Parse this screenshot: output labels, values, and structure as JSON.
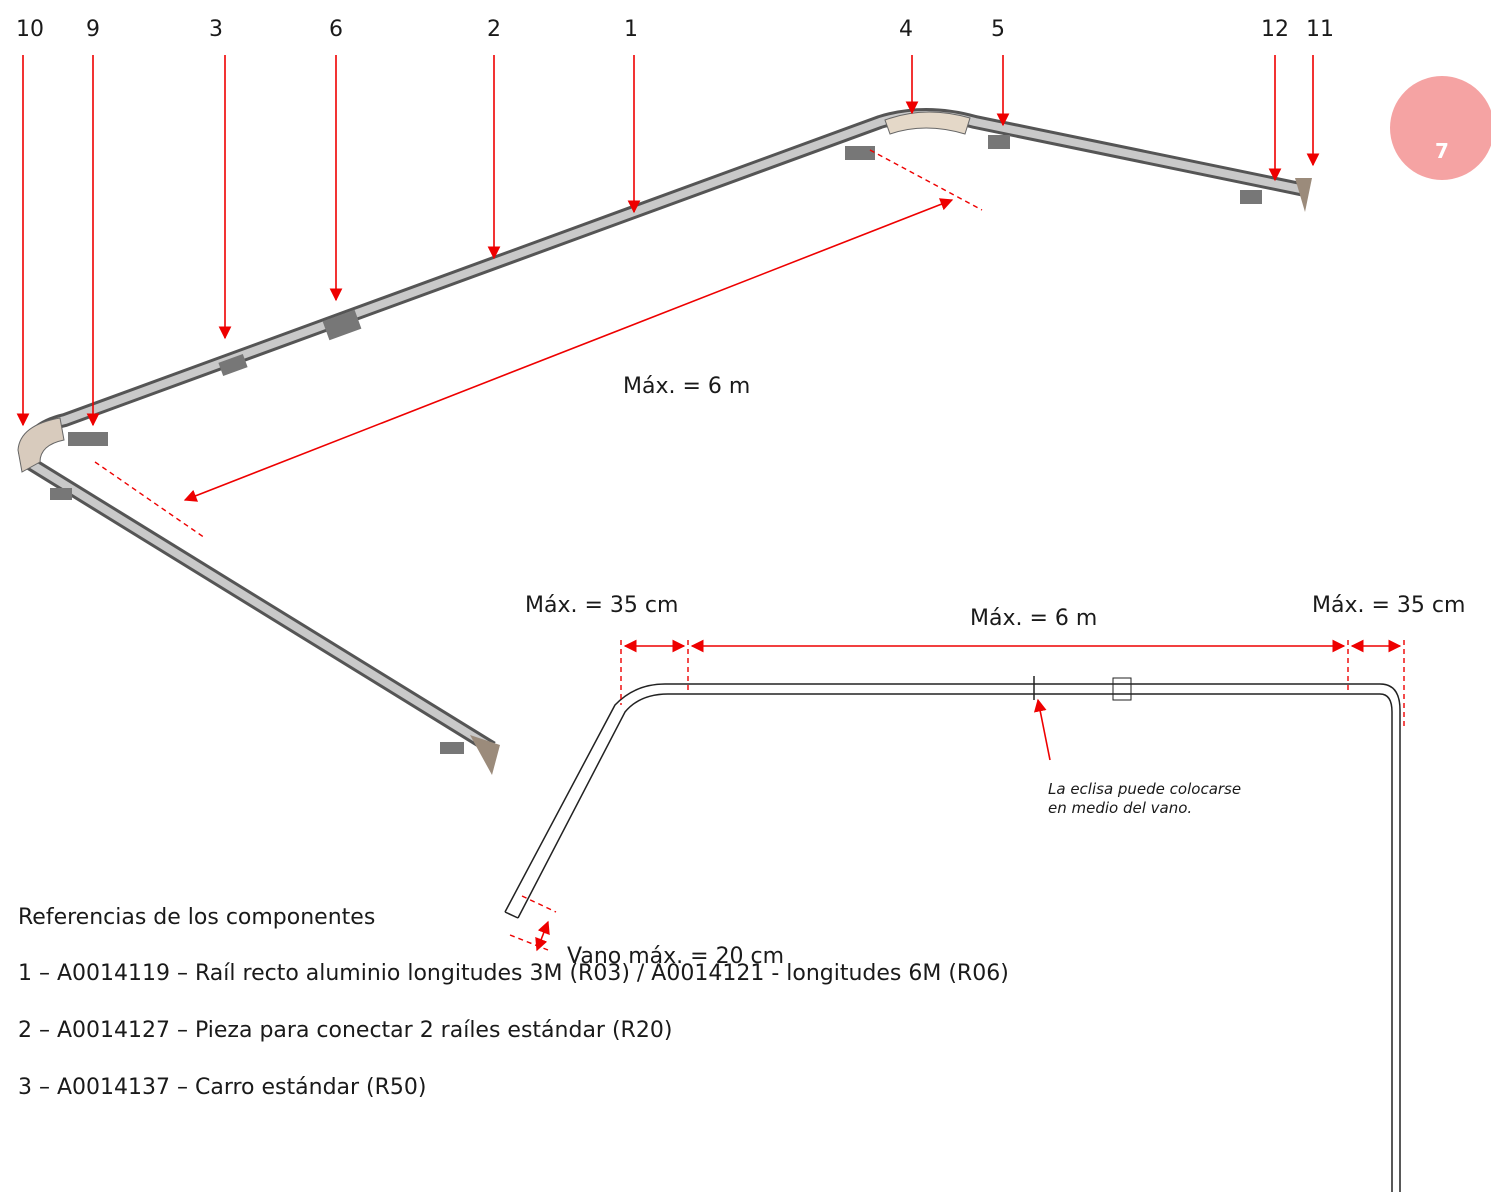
{
  "page_number": "7",
  "callouts": [
    "10",
    "9",
    "3",
    "6",
    "2",
    "1",
    "4",
    "5",
    "12",
    "11"
  ],
  "iso_dimension": "Máx. = 6 m",
  "plan_dimensions": {
    "left": "Máx. = 35 cm",
    "center": "Máx. = 6 m",
    "right": "Máx. = 35 cm"
  },
  "note": [
    "La eclisa puede colocarse",
    "en medio del vano."
  ],
  "gap_dimension": "Vano máx. = 20 cm",
  "references": {
    "title": "Referencias de los componentes",
    "items": [
      "1 – A0014119 – Raíl recto aluminio longitudes 3M (R03) / A0014121 - longitudes 6M (R06)",
      "2 – A0014127 – Pieza para conectar 2 raíles estándar (R20)",
      "3 – A0014137 – Carro estándar (R50)"
    ]
  }
}
